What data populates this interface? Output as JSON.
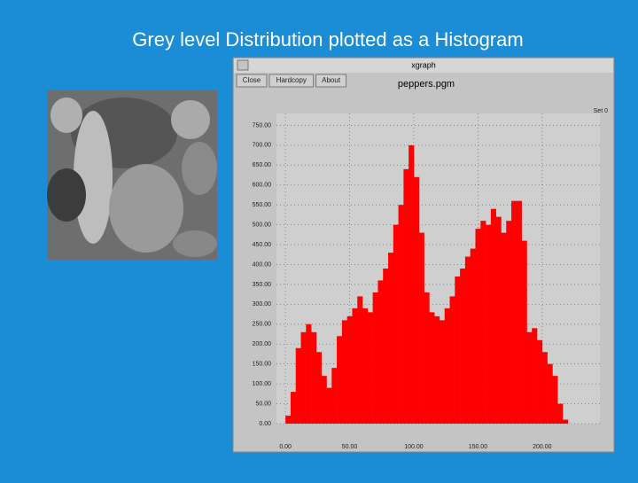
{
  "slide": {
    "title": "Grey level Distribution plotted as a Histogram"
  },
  "window": {
    "title": "xgraph",
    "buttons": [
      "Close",
      "Hardcopy",
      "About"
    ]
  },
  "chart_data": {
    "type": "histogram",
    "title": "peppers.pgm",
    "bins": [
      0,
      4,
      8,
      12,
      16,
      20,
      24,
      28,
      32,
      36,
      40,
      44,
      48,
      52,
      56,
      60,
      64,
      68,
      72,
      76,
      80,
      84,
      88,
      92,
      96,
      100,
      104,
      108,
      112,
      116,
      120,
      124,
      128,
      132,
      136,
      140,
      144,
      148,
      152,
      156,
      160,
      164,
      168,
      172,
      176,
      180,
      184,
      188,
      192,
      196,
      200,
      204,
      208,
      212,
      216,
      220,
      224
    ],
    "series": [
      {
        "name": "Set 0",
        "color": "#ff0000",
        "values": [
          20,
          80,
          190,
          230,
          250,
          230,
          180,
          120,
          90,
          140,
          220,
          260,
          270,
          290,
          320,
          290,
          280,
          330,
          360,
          390,
          430,
          500,
          550,
          640,
          700,
          620,
          480,
          330,
          280,
          270,
          260,
          290,
          320,
          370,
          390,
          420,
          440,
          490,
          510,
          500,
          540,
          520,
          480,
          510,
          560,
          560,
          460,
          230,
          240,
          210,
          180,
          150,
          120,
          50,
          10,
          0
        ]
      }
    ],
    "xlim": [
      -7,
      245
    ],
    "ylim": [
      0,
      780
    ],
    "xticks": [
      {
        "value": 0,
        "label": "0.00"
      },
      {
        "value": 50,
        "label": "50.00"
      },
      {
        "value": 100,
        "label": "100.00"
      },
      {
        "value": 150,
        "label": "150.00"
      },
      {
        "value": 200,
        "label": "200.00"
      }
    ],
    "yticks": [
      {
        "value": 0,
        "label": "0.00"
      },
      {
        "value": 50,
        "label": "50.00"
      },
      {
        "value": 100,
        "label": "100.00"
      },
      {
        "value": 150,
        "label": "150.00"
      },
      {
        "value": 200,
        "label": "200.00"
      },
      {
        "value": 250,
        "label": "250.00"
      },
      {
        "value": 300,
        "label": "300.00"
      },
      {
        "value": 350,
        "label": "350.00"
      },
      {
        "value": 400,
        "label": "400.00"
      },
      {
        "value": 450,
        "label": "450.00"
      },
      {
        "value": 500,
        "label": "500.00"
      },
      {
        "value": 550,
        "label": "550.00"
      },
      {
        "value": 600,
        "label": "600.00"
      },
      {
        "value": 650,
        "label": "650.00"
      },
      {
        "value": 700,
        "label": "700.00"
      },
      {
        "value": 750,
        "label": "750.00"
      }
    ],
    "grid": true
  }
}
